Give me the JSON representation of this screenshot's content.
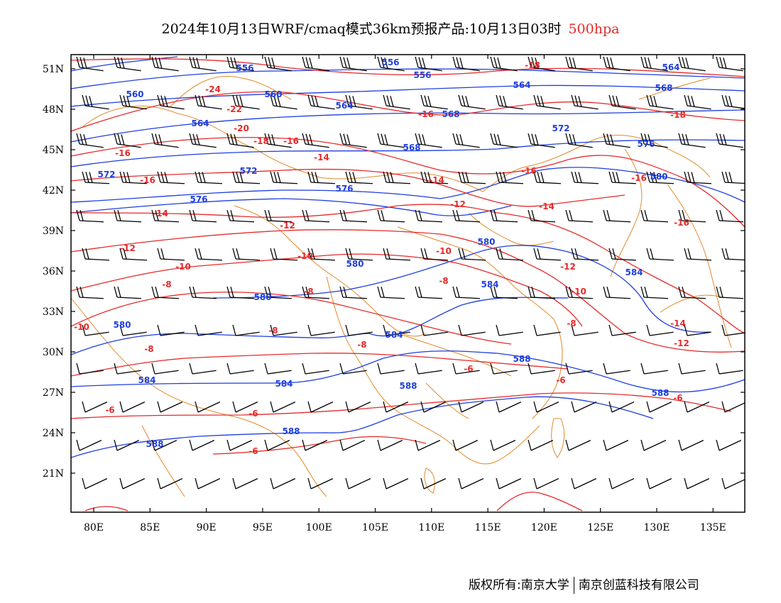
{
  "title": {
    "main": "2024年10月13日WRF/cmaq模式36km预报产品:10月13日03时",
    "level": "500hpa"
  },
  "map": {
    "x_ticks": [
      "80E",
      "85E",
      "90E",
      "95E",
      "100E",
      "105E",
      "110E",
      "115E",
      "120E",
      "125E",
      "130E",
      "135E"
    ],
    "y_ticks": [
      "51N",
      "48N",
      "45N",
      "42N",
      "39N",
      "36N",
      "33N",
      "30N",
      "27N",
      "24N",
      "21N"
    ],
    "colors": {
      "height_contour": "#1f3fe0",
      "temperature_contour": "#e52b2b",
      "boundary": "#e08a2a",
      "wind": "#000000"
    },
    "height_labels": [
      "556",
      "560",
      "564",
      "568",
      "572",
      "576",
      "580",
      "584",
      "588"
    ],
    "temperature_labels": [
      "-24",
      "-22",
      "-20",
      "-18",
      "-16",
      "-14",
      "-12",
      "-10",
      "-8",
      "-6"
    ]
  },
  "footer": {
    "copyright_prefix": "版权所有:",
    "org1": "南京大学",
    "org2": "南京创蓝科技有限公司"
  }
}
